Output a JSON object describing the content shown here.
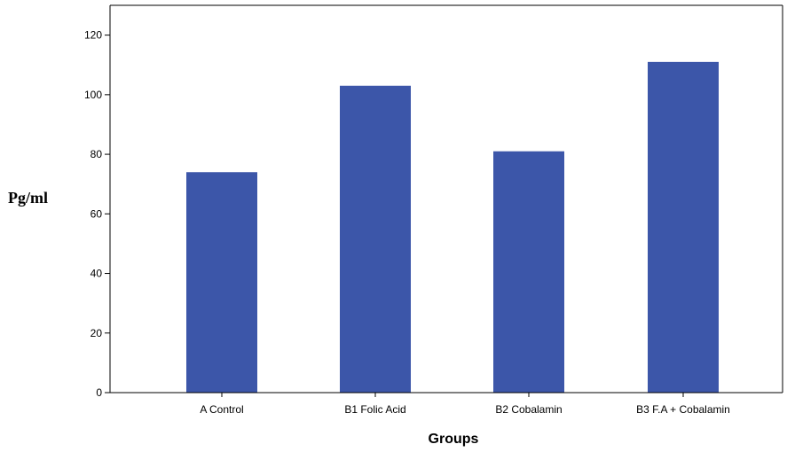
{
  "chart_data": {
    "type": "bar",
    "categories": [
      "A Control",
      "B1 Folic Acid",
      "B2 Cobalamin",
      "B3 F.A + Cobalamin"
    ],
    "values": [
      74,
      103,
      81,
      111
    ],
    "title": "",
    "xlabel": "Groups",
    "ylabel": "Pg/ml",
    "ylim": [
      0,
      130
    ],
    "yticks": [
      0,
      20,
      40,
      60,
      80,
      100,
      120
    ],
    "grid": false,
    "bar_color": "#3c56a9",
    "axis_color": "#000000"
  }
}
